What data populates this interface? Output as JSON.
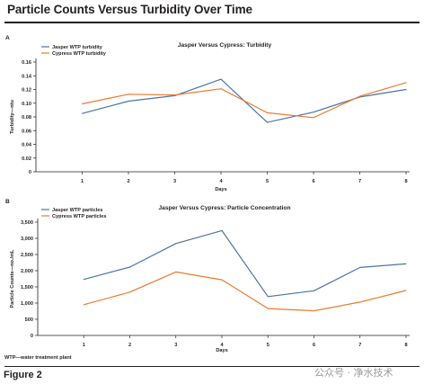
{
  "figure": {
    "title": "Particle Counts Versus Turbidity Over Time",
    "label": "Figure 2",
    "footnote": "WTP—water treatment plant",
    "watermark": "公众号 · 净水技术"
  },
  "chart_data": [
    {
      "panel": "A",
      "type": "line",
      "title": "Jasper Versus Cypress: Turbidity",
      "xlabel": "Days",
      "ylabel": "Turbidity—ntu",
      "x": [
        1,
        2,
        3,
        4,
        5,
        6,
        7,
        8
      ],
      "xlim": [
        0,
        8
      ],
      "ylim": [
        0,
        0.16
      ],
      "yticks": [
        0,
        0.02,
        0.04,
        0.06,
        0.08,
        0.1,
        0.12,
        0.14,
        0.16
      ],
      "ytick_labels": [
        "0",
        "0.02",
        "0.04",
        "0.06",
        "0.08",
        "0.10",
        "0.12",
        "0.14",
        "0.16"
      ],
      "grid": false,
      "legend": "top-left",
      "series": [
        {
          "name": "Jasper WTP turbidity",
          "color": "#4a74a8",
          "values": [
            0.085,
            0.103,
            0.111,
            0.135,
            0.072,
            0.087,
            0.109,
            0.12
          ]
        },
        {
          "name": "Cypress WTP turbidity",
          "color": "#ec7a2c",
          "values": [
            0.099,
            0.113,
            0.112,
            0.121,
            0.086,
            0.079,
            0.11,
            0.13
          ]
        }
      ]
    },
    {
      "panel": "B",
      "type": "line",
      "title": "Jasper Versus Cypress: Particle Concentration",
      "xlabel": "Days",
      "ylabel": "Particle Counts—no./mL",
      "x": [
        1,
        2,
        3,
        4,
        5,
        6,
        7,
        8
      ],
      "xlim": [
        0,
        8
      ],
      "ylim": [
        0,
        3500
      ],
      "yticks": [
        0,
        500,
        1000,
        1500,
        2000,
        2500,
        3000,
        3500
      ],
      "ytick_labels": [
        "0",
        "500",
        "1,000",
        "1,500",
        "2,000",
        "2,500",
        "3,000",
        "3,500"
      ],
      "grid": false,
      "legend": "top-left",
      "series": [
        {
          "name": "Jasper WTP particles",
          "color": "#4a74a8",
          "values": [
            1730,
            2110,
            2840,
            3240,
            1200,
            1380,
            2100,
            2210
          ]
        },
        {
          "name": "Cypress WTP particles",
          "color": "#ec7a2c",
          "values": [
            950,
            1340,
            1960,
            1720,
            830,
            760,
            1030,
            1390
          ]
        }
      ]
    }
  ]
}
